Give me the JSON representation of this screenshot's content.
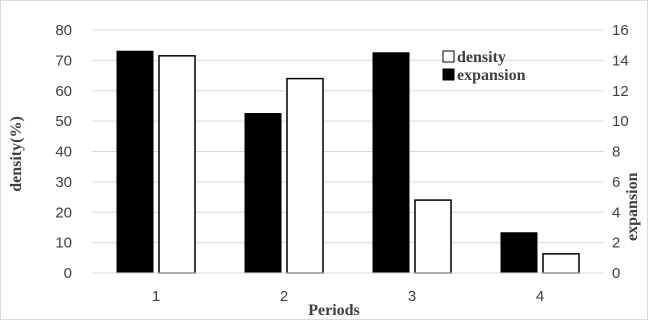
{
  "chart_data": {
    "type": "bar",
    "categories": [
      "1",
      "2",
      "3",
      "4"
    ],
    "xlabel": "Periods",
    "ylabel_left": "density(%)",
    "ylabel_right": "expansion",
    "ylim_left": [
      0,
      80
    ],
    "yticks_left": [
      "0",
      "10",
      "20",
      "30",
      "40",
      "50",
      "60",
      "70",
      "80"
    ],
    "ylim_right": [
      0,
      16
    ],
    "yticks_right": [
      "0",
      "2",
      "4",
      "6",
      "8",
      "10",
      "12",
      "14",
      "16"
    ],
    "grid": true,
    "legend_position": "top-right",
    "series": [
      {
        "name": "expansion",
        "axis": "right",
        "color": "#000000",
        "values": [
          14.6,
          10.5,
          14.5,
          2.65
        ]
      },
      {
        "name": "density",
        "axis": "left",
        "color": "#ffffff",
        "stroke": "#000000",
        "values": [
          71.5,
          64,
          24,
          6.3
        ]
      }
    ],
    "legend": [
      {
        "label": "density",
        "fill": "#ffffff"
      },
      {
        "label": "expansion",
        "fill": "#000000"
      }
    ]
  }
}
